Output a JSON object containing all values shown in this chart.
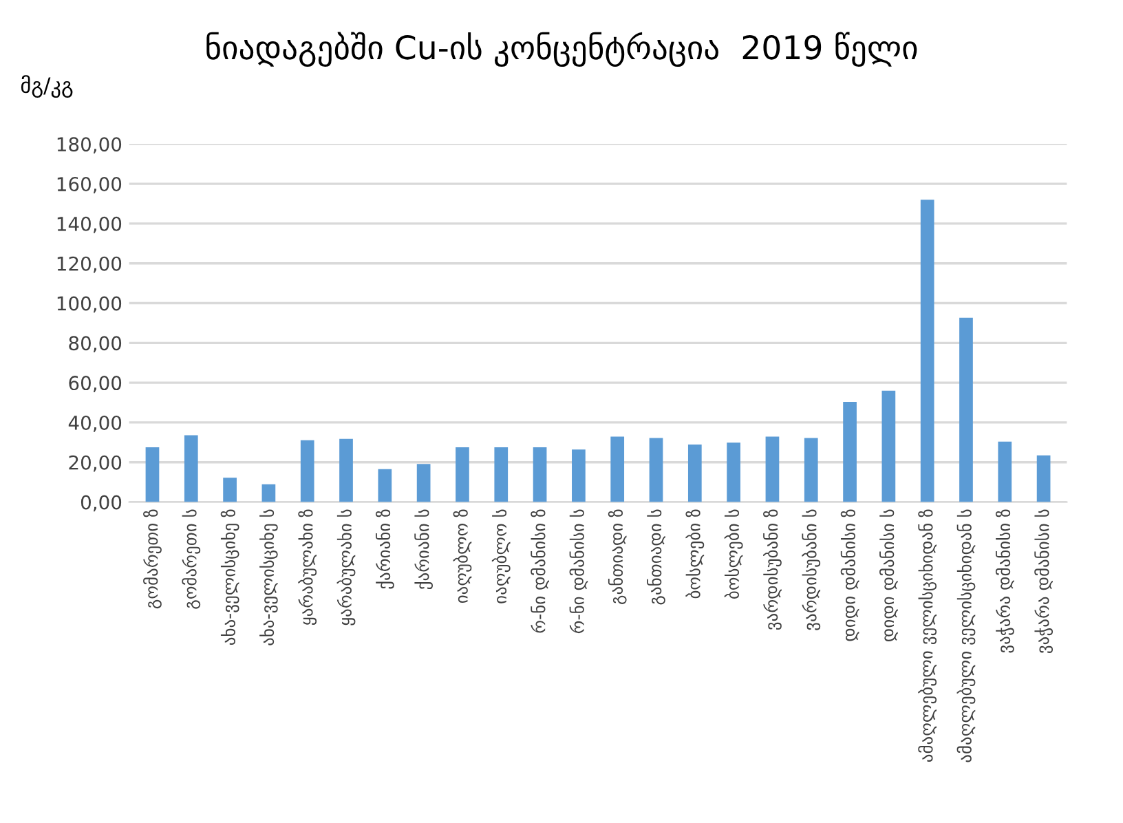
{
  "chart_data": {
    "type": "bar",
    "title": "ნიადაგებში Cu-ის კონცენტრაცია  2019 წელი",
    "ylabel": "მგ/კგ",
    "categories": [
      "გომარეთი ზ",
      "გომარეთი ს",
      "ახა-ველისციხე ზ",
      "ახა-ველისციხე ს",
      "ყარაბულახი ზ",
      "ყარაბულახი ს",
      "ქარიანი ზ",
      "ქარიანი ს",
      "იაღუბლო ზ",
      "იაღუბლო ს",
      "რ-ნი დმანისი ზ",
      "რ-ნი დმანისი ს",
      "განთიადი ზ",
      "განთიადი ს",
      "ბოსლები ზ",
      "ბოსლები ს",
      "ვარდისუბანი ზ",
      "ვარდისუბანი ს",
      "დიდი დმანისი ზ",
      "დიდი დმანისი ს",
      "ამაღლებული ველისციხიდან ზ",
      "ამაღლებული ველისციხიდან ს",
      "ვაჭარა დმანისი ზ",
      "ვაჭარა დმანისი ს"
    ],
    "values": [
      27.5,
      33.6,
      12.2,
      8.9,
      31.1,
      31.8,
      16.5,
      19.1,
      27.5,
      27.5,
      27.5,
      26.4,
      32.9,
      32.2,
      28.9,
      29.9,
      32.9,
      32.2,
      50.4,
      56.0,
      152.0,
      92.7,
      30.4,
      23.5
    ],
    "color": "#5b9bd5",
    "ylim": [
      0,
      180
    ],
    "yticks": [
      {
        "value": 0,
        "label": "0,00"
      },
      {
        "value": 20,
        "label": "20,00"
      },
      {
        "value": 40,
        "label": "40,00"
      },
      {
        "value": 60,
        "label": "60,00"
      },
      {
        "value": 80,
        "label": "80,00"
      },
      {
        "value": 100,
        "label": "100,00"
      },
      {
        "value": 120,
        "label": "120,00"
      },
      {
        "value": 140,
        "label": "140,00"
      },
      {
        "value": 160,
        "label": "160,00"
      },
      {
        "value": 180,
        "label": "180,00"
      }
    ],
    "grid": "y",
    "legend": false
  }
}
